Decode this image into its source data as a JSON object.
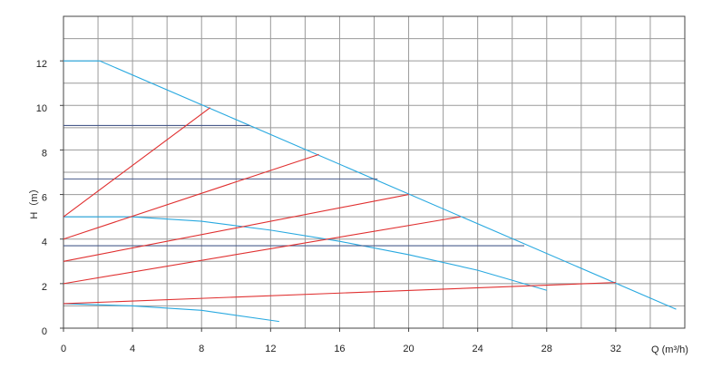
{
  "chart_data": {
    "type": "line",
    "x_label": "Q (m³/h)",
    "y_label": "H（m）",
    "xlim": [
      0,
      36
    ],
    "ylim": [
      0,
      14
    ],
    "xticks": [
      0,
      4,
      8,
      12,
      16,
      20,
      24,
      28,
      32
    ],
    "yticks": [
      0,
      2,
      4,
      6,
      8,
      10,
      12
    ],
    "xgrid": [
      2,
      4,
      6,
      8,
      10,
      12,
      14,
      16,
      18,
      20,
      22,
      24,
      26,
      28,
      30,
      32,
      34
    ],
    "ygrid": [
      1,
      2,
      3,
      4,
      5,
      6,
      7,
      8,
      9,
      10,
      11,
      12,
      13
    ],
    "grid": true,
    "series": [
      {
        "color": "#29a9e0",
        "x": [
          0,
          2.1,
          35.5
        ],
        "values": [
          12,
          12,
          0.85
        ]
      },
      {
        "color": "#29a9e0",
        "x": [
          0,
          4,
          8,
          12,
          16,
          20,
          24,
          28
        ],
        "values": [
          5,
          5,
          4.8,
          4.4,
          3.9,
          3.3,
          2.6,
          1.7
        ]
      },
      {
        "color": "#29a9e0",
        "x": [
          0,
          4,
          8,
          12.5
        ],
        "values": [
          1.1,
          1.0,
          0.8,
          0.3
        ]
      },
      {
        "color": "#4a5c8c",
        "x": [
          0,
          10.8
        ],
        "values": [
          9.1,
          9.1
        ]
      },
      {
        "color": "#4a5c8c",
        "x": [
          0,
          18.2
        ],
        "values": [
          6.7,
          6.7
        ]
      },
      {
        "color": "#4a5c8c",
        "x": [
          0,
          26.7
        ],
        "values": [
          3.7,
          3.7
        ]
      },
      {
        "color": "#e03030",
        "x": [
          0,
          8.5
        ],
        "values": [
          5,
          9.9
        ]
      },
      {
        "color": "#e03030",
        "x": [
          0,
          14.8
        ],
        "values": [
          4,
          7.8
        ]
      },
      {
        "color": "#e03030",
        "x": [
          0,
          20
        ],
        "values": [
          3,
          6
        ]
      },
      {
        "color": "#e03030",
        "x": [
          0,
          23
        ],
        "values": [
          2,
          5
        ]
      },
      {
        "color": "#e03030",
        "x": [
          0,
          32
        ],
        "values": [
          1.1,
          2.05
        ]
      }
    ]
  }
}
